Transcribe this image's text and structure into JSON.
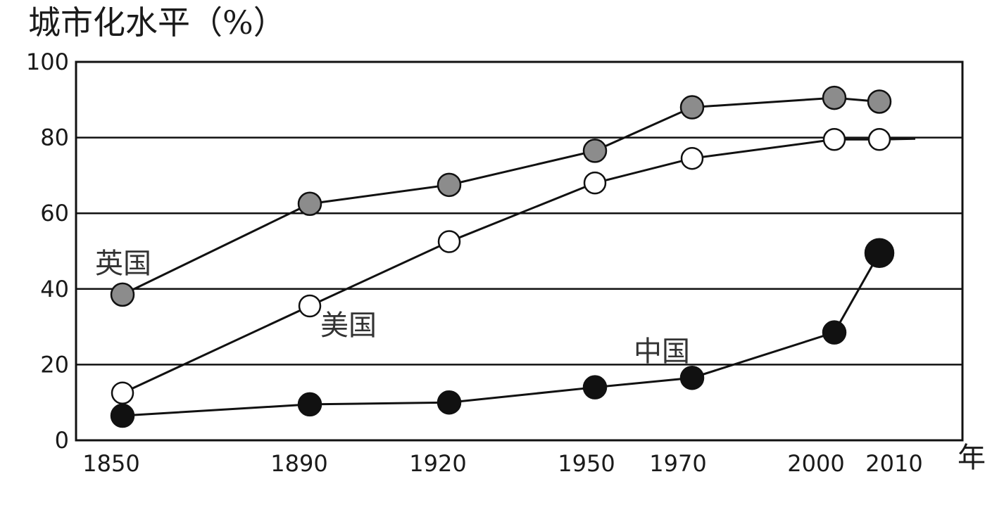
{
  "chart_data": {
    "type": "line",
    "title": "",
    "ylabel": "城市化水平（%）",
    "xlabel": "年",
    "x": [
      1850,
      1890,
      1920,
      1950,
      1970,
      2000,
      2010
    ],
    "xlim": [
      1850,
      2010
    ],
    "ylim": [
      0,
      100
    ],
    "yticks": [
      0,
      20,
      40,
      60,
      80,
      100
    ],
    "grid_y": [
      20,
      40,
      60,
      80
    ],
    "series": [
      {
        "name": "英国",
        "color": "#8c8c8c",
        "values": [
          38.5,
          62.5,
          67.5,
          76.5,
          88.0,
          90.5,
          89.5
        ]
      },
      {
        "name": "美国",
        "color": "#ffffff",
        "values": [
          12.5,
          35.5,
          52.5,
          68.0,
          74.5,
          79.5,
          79.5
        ]
      },
      {
        "name": "中国",
        "color": "#111111",
        "values": [
          6.5,
          9.5,
          10.0,
          14.0,
          16.5,
          28.5,
          49.5
        ]
      }
    ]
  }
}
